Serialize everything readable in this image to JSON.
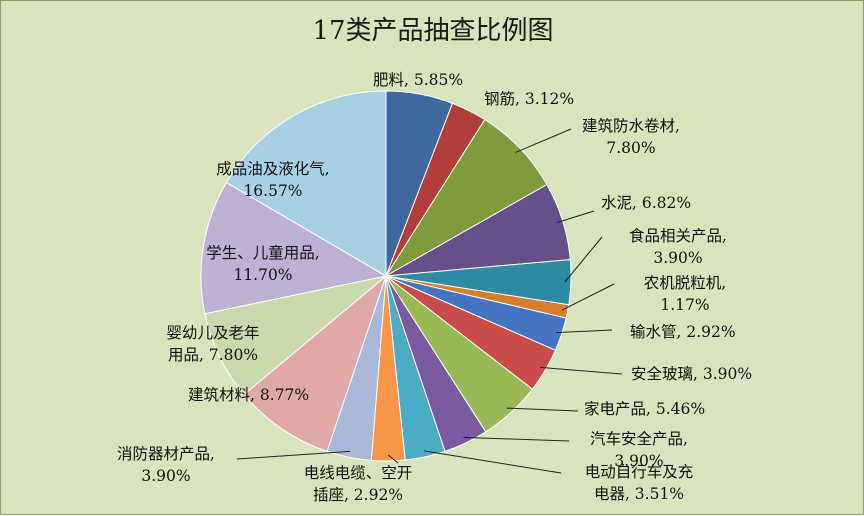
{
  "chart_data": {
    "type": "pie",
    "title": "17类产品抽查比例图",
    "slices": [
      {
        "label": "肥料",
        "value": 5.85,
        "display": "5.85%",
        "color": "#3e689f"
      },
      {
        "label": "钢筋",
        "value": 3.12,
        "display": "3.12%",
        "color": "#b23e3a"
      },
      {
        "label": "建筑防水卷材",
        "value": 7.8,
        "display": "7.80%",
        "color": "#7e9a3a"
      },
      {
        "label": "水泥",
        "value": 6.82,
        "display": "6.82%",
        "color": "#664f8a"
      },
      {
        "label": "食品相关产品",
        "value": 3.9,
        "display": "3.90%",
        "color": "#2f8aa3"
      },
      {
        "label": "农机脱粒机",
        "value": 1.17,
        "display": "1.17%",
        "color": "#d57f2d"
      },
      {
        "label": "输水管",
        "value": 2.92,
        "display": "2.92%",
        "color": "#4673c2"
      },
      {
        "label": "安全玻璃",
        "value": 3.9,
        "display": "3.90%",
        "color": "#c84d4a"
      },
      {
        "label": "家电产品",
        "value": 5.46,
        "display": "5.46%",
        "color": "#98b955"
      },
      {
        "label": "汽车安全产品",
        "value": 3.9,
        "display": "3.90%",
        "color": "#7a5aa0"
      },
      {
        "label": "电动自行车及充电器",
        "value": 3.51,
        "display": "3.51%",
        "color": "#4bacc6"
      },
      {
        "label": "电线电缆、空开插座",
        "value": 2.92,
        "display": "2.92%",
        "color": "#f79646"
      },
      {
        "label": "消防器材产品",
        "value": 3.9,
        "display": "3.90%",
        "color": "#a9b8d8"
      },
      {
        "label": "建筑材料",
        "value": 8.77,
        "display": "8.77%",
        "color": "#e0a9a8"
      },
      {
        "label": "婴幼儿及老年用品",
        "value": 7.8,
        "display": "7.80%",
        "color": "#c9d9ad"
      },
      {
        "label": "学生、儿童用品",
        "value": 11.7,
        "display": "11.70%",
        "color": "#bfb1d3"
      },
      {
        "label": "成品油及液化气",
        "value": 16.57,
        "display": "16.57%",
        "color": "#a8d2e4"
      }
    ],
    "label_lines": [
      [
        "肥料, 5.85%"
      ],
      [
        "钢筋, 3.12%"
      ],
      [
        "建筑防水卷材,",
        "7.80%"
      ],
      [
        "水泥, 6.82%"
      ],
      [
        "食品相关产品,",
        "3.90%"
      ],
      [
        "农机脱粒机,",
        "1.17%"
      ],
      [
        "输水管, 2.92%"
      ],
      [
        "安全玻璃, 3.90%"
      ],
      [
        "家电产品, 5.46%"
      ],
      [
        "汽车安全产品,",
        "3.90%"
      ],
      [
        "电动自行车及充",
        "电器, 3.51%"
      ],
      [
        "电线电缆、空开",
        "插座, 2.92%"
      ],
      [
        "消防器材产品,",
        "3.90%"
      ],
      [
        "建筑材料, 8.77%"
      ],
      [
        "婴幼儿及老年",
        "用品, 7.80%"
      ],
      [
        "学生、儿童用品,",
        "11.70%"
      ],
      [
        "成品油及液化气,",
        "16.57%"
      ]
    ]
  }
}
